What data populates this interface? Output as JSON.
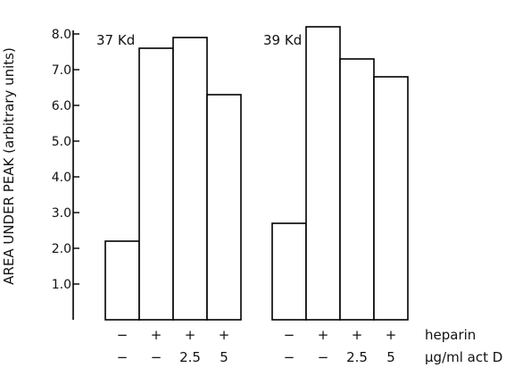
{
  "chart_data": {
    "type": "bar",
    "title": "",
    "ylabel": "AREA UNDER PEAK (arbitrary units)",
    "xlabel": "",
    "ylim": [
      0,
      8.7
    ],
    "yticks": [
      "1.0",
      "2.0",
      "3.0",
      "4.0",
      "5.0",
      "6.0",
      "7.0",
      "8.0"
    ],
    "groups": [
      {
        "label": "37 Kd",
        "bars": [
          {
            "heparin": "−",
            "act_d": "−",
            "value": 2.2
          },
          {
            "heparin": "+",
            "act_d": "−",
            "value": 7.6
          },
          {
            "heparin": "+",
            "act_d": "2.5",
            "value": 7.9
          },
          {
            "heparin": "+",
            "act_d": "5",
            "value": 6.3
          }
        ]
      },
      {
        "label": "39 Kd",
        "bars": [
          {
            "heparin": "−",
            "act_d": "−",
            "value": 2.7
          },
          {
            "heparin": "+",
            "act_d": "−",
            "value": 8.2
          },
          {
            "heparin": "+",
            "act_d": "2.5",
            "value": 7.3
          },
          {
            "heparin": "+",
            "act_d": "5",
            "value": 6.8
          }
        ]
      }
    ],
    "row_labels": {
      "heparin": "heparin",
      "act_d": "μg/ml act D"
    },
    "bar_fill": "#ffffff",
    "bar_stroke": "#000000"
  }
}
